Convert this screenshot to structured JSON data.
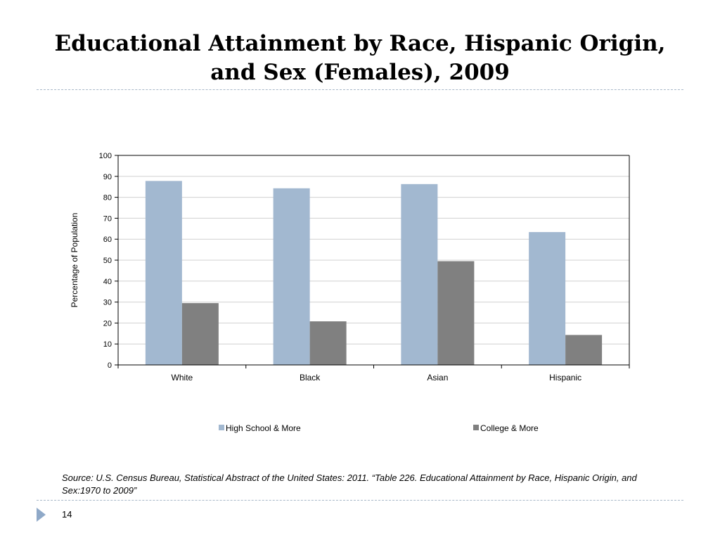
{
  "slide": {
    "title_line1": "Educational Attainment by Race, Hispanic Origin,",
    "title_line2": "and Sex (Females), 2009",
    "source_text": "Source: U.S. Census Bureau, Statistical Abstract of the United States: 2011. “Table 226. Educational Attainment by Race, Hispanic Origin, and Sex:1970 to 2009”",
    "page_number": "14",
    "page_marker_icon": "triangle-right-icon"
  },
  "chart_data": {
    "type": "bar",
    "categories": [
      "White",
      "Black",
      "Asian",
      "Hispanic"
    ],
    "series": [
      {
        "name": "High School & More",
        "values": [
          87.8,
          84.3,
          86.3,
          63.4
        ],
        "color": "#a2b8d0"
      },
      {
        "name": "College & More",
        "values": [
          29.5,
          20.8,
          49.5,
          14.3
        ],
        "color": "#808080"
      }
    ],
    "title": "",
    "xlabel": "",
    "ylabel": "Percentage of Population",
    "ylim": [
      0,
      100
    ],
    "yticks": [
      0,
      10,
      20,
      30,
      40,
      50,
      60,
      70,
      80,
      90,
      100
    ],
    "grid": true,
    "legend_position": "bottom"
  }
}
